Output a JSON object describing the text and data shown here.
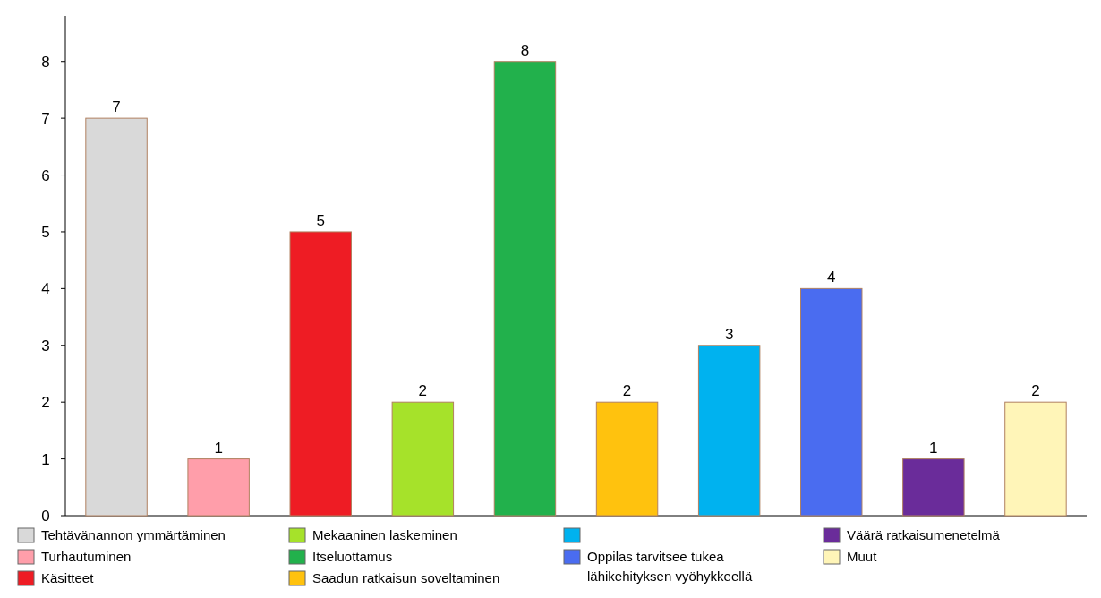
{
  "chart_data": {
    "type": "bar",
    "stacked": true,
    "categories": [
      null,
      null,
      null,
      null,
      null,
      null,
      null,
      null,
      null,
      null
    ],
    "series": [
      {
        "name": "Tehtävänannon ymmärtäminen",
        "color": "#d9d9d9",
        "values": [
          7,
          null,
          null,
          null,
          null,
          null,
          null,
          null,
          null,
          null
        ]
      },
      {
        "name": "Turhautuminen",
        "color": "#ff9eaa",
        "values": [
          null,
          1,
          null,
          null,
          null,
          null,
          null,
          null,
          null,
          null
        ]
      },
      {
        "name": "Käsitteet",
        "color": "#ee1c24",
        "values": [
          null,
          null,
          5,
          null,
          null,
          null,
          null,
          null,
          null,
          null
        ]
      },
      {
        "name": "Mekaaninen laskeminen",
        "color": "#a6e22a",
        "values": [
          null,
          null,
          null,
          2,
          null,
          null,
          null,
          null,
          null,
          null
        ]
      },
      {
        "name": "Itseluottamus",
        "color": "#22b14c",
        "values": [
          null,
          null,
          null,
          null,
          8,
          null,
          null,
          null,
          null,
          null
        ]
      },
      {
        "name": "Saadun ratkaisun soveltaminen",
        "color": "#ffc20e",
        "values": [
          null,
          null,
          null,
          null,
          null,
          2,
          null,
          null,
          null,
          null
        ]
      },
      {
        "color": "#00b2ef",
        "values": [
          null,
          null,
          null,
          null,
          null,
          null,
          3,
          null,
          null,
          null
        ]
      },
      {
        "name": "Oppilas tarvitsee tukea lähikehityksen vyöhykkeellä",
        "color": "#4a6cf0",
        "values": [
          null,
          null,
          null,
          null,
          null,
          null,
          null,
          4,
          null,
          null
        ]
      },
      {
        "name": "Väärä ratkaisumenetelmä",
        "color": "#6a2c9a",
        "values": [
          null,
          null,
          null,
          null,
          null,
          null,
          null,
          null,
          1,
          null
        ]
      },
      {
        "name": "Muut",
        "color": "#fff5b8",
        "values": [
          null,
          null,
          null,
          null,
          null,
          null,
          null,
          null,
          null,
          2
        ]
      }
    ],
    "ylim": [
      0,
      8.8
    ],
    "yticks": [
      0,
      1,
      2,
      3,
      4,
      5,
      6,
      7,
      8
    ],
    "data_labels": true,
    "tick_labels": "y",
    "grid": false,
    "legend": "bottom"
  }
}
